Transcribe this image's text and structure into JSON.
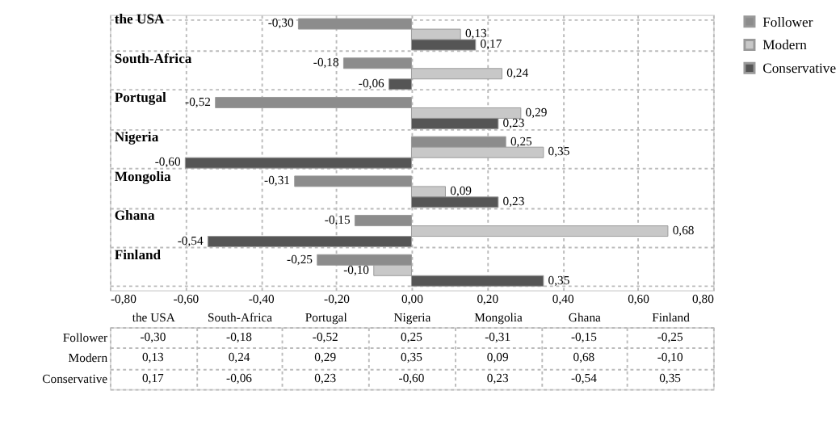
{
  "chart_data": {
    "type": "bar",
    "orientation": "horizontal",
    "categories": [
      "the USA",
      "South-Africa",
      "Portugal",
      "Nigeria",
      "Mongolia",
      "Ghana",
      "Finland"
    ],
    "series": [
      {
        "name": "Follower",
        "color": "#8c8c8c",
        "values": [
          -0.3,
          -0.18,
          -0.52,
          0.25,
          -0.31,
          -0.15,
          -0.25
        ],
        "value_labels": [
          "-0,30",
          "-0,18",
          "-0,52",
          "0,25",
          "-0,31",
          "-0,15",
          "-0,25"
        ]
      },
      {
        "name": "Modern",
        "color": "#c8c8c8",
        "values": [
          0.13,
          0.24,
          0.29,
          0.35,
          0.09,
          0.68,
          -0.1
        ],
        "value_labels": [
          "0,13",
          "0,24",
          "0,29",
          "0,35",
          "0,09",
          "0,68",
          "-0,10"
        ]
      },
      {
        "name": "Conservative",
        "color": "#555555",
        "values": [
          0.17,
          -0.06,
          0.23,
          -0.6,
          0.23,
          -0.54,
          0.35
        ],
        "value_labels": [
          "0,17",
          "-0,06",
          "0,23",
          "-0,60",
          "0,23",
          "-0,54",
          "0,35"
        ]
      }
    ],
    "xlim": [
      -0.8,
      0.8
    ],
    "xticks": [
      {
        "value": -0.8,
        "label": "-0,80"
      },
      {
        "value": -0.6,
        "label": "-0,60"
      },
      {
        "value": -0.4,
        "label": "-0,40"
      },
      {
        "value": -0.2,
        "label": "-0,20"
      },
      {
        "value": 0,
        "label": "0,00"
      },
      {
        "value": 0.2,
        "label": "0,20"
      },
      {
        "value": 0.4,
        "label": "0,40"
      },
      {
        "value": 0.6,
        "label": "0,60"
      },
      {
        "value": 0.8,
        "label": "0,80"
      }
    ],
    "grid": true,
    "legend": "right"
  }
}
